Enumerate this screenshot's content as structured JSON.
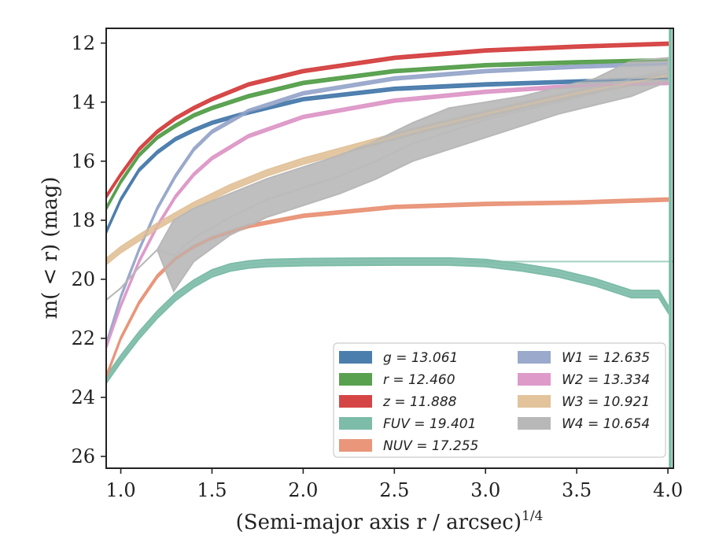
{
  "chart_data": {
    "type": "line",
    "xlabel_main": "(Semi-major axis r / arcsec)",
    "xlabel_sup": "1/4",
    "ylabel": "m( < r) (mag)",
    "xlim": [
      0.92,
      4.03
    ],
    "ylim": [
      26.4,
      11.5
    ],
    "y_inverted": true,
    "xticks": [
      "1.0",
      "1.5",
      "2.0",
      "2.5",
      "3.0",
      "3.5",
      "4.0"
    ],
    "yticks": [
      "12",
      "14",
      "16",
      "18",
      "20",
      "22",
      "24",
      "26"
    ],
    "legend_position": "lower right",
    "legend_columns": 2,
    "grid": false,
    "series": [
      {
        "name": "g = 13.061",
        "color": "#4c7ead",
        "x": [
          0.92,
          1.0,
          1.1,
          1.2,
          1.3,
          1.4,
          1.5,
          1.7,
          2.0,
          2.5,
          3.0,
          3.5,
          4.0
        ],
        "y": [
          18.4,
          17.3,
          16.3,
          15.7,
          15.25,
          14.95,
          14.7,
          14.35,
          13.9,
          13.55,
          13.4,
          13.3,
          13.2
        ],
        "band": 0.05
      },
      {
        "name": "r = 12.460",
        "color": "#59a14f",
        "x": [
          0.92,
          1.0,
          1.1,
          1.2,
          1.3,
          1.4,
          1.5,
          1.7,
          2.0,
          2.5,
          3.0,
          3.5,
          4.0
        ],
        "y": [
          17.6,
          16.7,
          15.8,
          15.2,
          14.8,
          14.45,
          14.2,
          13.8,
          13.35,
          12.95,
          12.75,
          12.65,
          12.58
        ],
        "band": 0.05
      },
      {
        "name": "z = 11.888",
        "color": "#d64545",
        "x": [
          0.92,
          1.0,
          1.1,
          1.2,
          1.3,
          1.4,
          1.5,
          1.7,
          2.0,
          2.5,
          3.0,
          3.5,
          4.0
        ],
        "y": [
          17.2,
          16.45,
          15.6,
          15.0,
          14.55,
          14.2,
          13.9,
          13.4,
          12.95,
          12.5,
          12.25,
          12.12,
          12.02
        ],
        "band": 0.05
      },
      {
        "name": "FUV = 19.401",
        "color": "#7dbca8",
        "x": [
          0.92,
          1.0,
          1.1,
          1.2,
          1.3,
          1.4,
          1.5,
          1.6,
          1.7,
          1.8,
          2.0,
          2.2,
          2.5,
          2.8,
          3.0,
          3.2,
          3.4,
          3.6,
          3.8,
          3.95,
          4.0
        ],
        "y": [
          23.4,
          22.7,
          21.9,
          21.2,
          20.6,
          20.15,
          19.8,
          19.6,
          19.5,
          19.45,
          19.42,
          19.41,
          19.4,
          19.4,
          19.45,
          19.6,
          19.8,
          20.1,
          20.5,
          20.5,
          21.0
        ],
        "band": 0.12,
        "asymptote": 19.401
      },
      {
        "name": "NUV = 17.255",
        "color": "#e9967a",
        "x": [
          0.92,
          1.0,
          1.1,
          1.2,
          1.3,
          1.4,
          1.5,
          1.7,
          2.0,
          2.5,
          3.0,
          3.5,
          4.0
        ],
        "y": [
          23.3,
          22.0,
          20.8,
          19.9,
          19.3,
          18.9,
          18.6,
          18.2,
          17.85,
          17.55,
          17.45,
          17.4,
          17.3
        ],
        "band": 0.05
      },
      {
        "name": "W1 = 12.635",
        "color": "#9aa9cc",
        "x": [
          0.92,
          1.0,
          1.1,
          1.2,
          1.3,
          1.4,
          1.5,
          1.7,
          2.0,
          2.5,
          3.0,
          3.5,
          4.0
        ],
        "y": [
          22.2,
          20.6,
          19.0,
          17.6,
          16.5,
          15.6,
          15.0,
          14.3,
          13.7,
          13.2,
          12.95,
          12.8,
          12.7
        ],
        "band": 0.05
      },
      {
        "name": "W2 = 13.334",
        "color": "#de9ac9",
        "x": [
          0.92,
          1.0,
          1.1,
          1.2,
          1.3,
          1.4,
          1.5,
          1.7,
          2.0,
          2.5,
          3.0,
          3.5,
          4.0
        ],
        "y": [
          22.3,
          20.9,
          19.4,
          18.2,
          17.2,
          16.45,
          15.9,
          15.15,
          14.5,
          13.95,
          13.65,
          13.45,
          13.35
        ],
        "band": 0.05
      },
      {
        "name": "W3 = 10.921",
        "color": "#e2c39b",
        "x": [
          0.92,
          1.0,
          1.2,
          1.4,
          1.6,
          1.8,
          2.0,
          2.3,
          2.6,
          3.0,
          3.5,
          4.0
        ],
        "y": [
          19.4,
          19.0,
          18.2,
          17.5,
          16.9,
          16.4,
          16.0,
          15.5,
          15.0,
          14.4,
          13.7,
          13.1
        ],
        "band": 0.1
      },
      {
        "name": "W4 = 10.654",
        "color": "#b8b8b8",
        "x": [
          0.92,
          1.0,
          1.1,
          1.2,
          1.29,
          1.4,
          1.6,
          1.8,
          2.0,
          2.2,
          2.4,
          2.6,
          2.8,
          3.0,
          3.2,
          3.4,
          3.6,
          3.8,
          4.0
        ],
        "y": [
          20.7,
          20.3,
          19.6,
          19.0,
          19.2,
          18.6,
          17.9,
          17.3,
          16.9,
          16.5,
          16.0,
          15.4,
          15.0,
          14.6,
          14.3,
          14.0,
          13.7,
          13.2,
          12.9
        ],
        "band_lower_upper": [
          [
            20.7,
            20.7
          ],
          [
            20.3,
            20.3
          ],
          [
            19.6,
            19.6
          ],
          [
            19.0,
            19.0
          ],
          [
            18.0,
            20.4
          ],
          [
            17.6,
            19.4
          ],
          [
            17.1,
            18.5
          ],
          [
            16.6,
            17.9
          ],
          [
            16.2,
            17.5
          ],
          [
            15.8,
            17.1
          ],
          [
            15.3,
            16.6
          ],
          [
            14.7,
            16.0
          ],
          [
            14.2,
            15.6
          ],
          [
            14.0,
            15.2
          ],
          [
            13.8,
            14.8
          ],
          [
            13.5,
            14.4
          ],
          [
            13.2,
            14.1
          ],
          [
            12.6,
            13.8
          ],
          [
            12.5,
            13.3
          ]
        ]
      }
    ]
  }
}
